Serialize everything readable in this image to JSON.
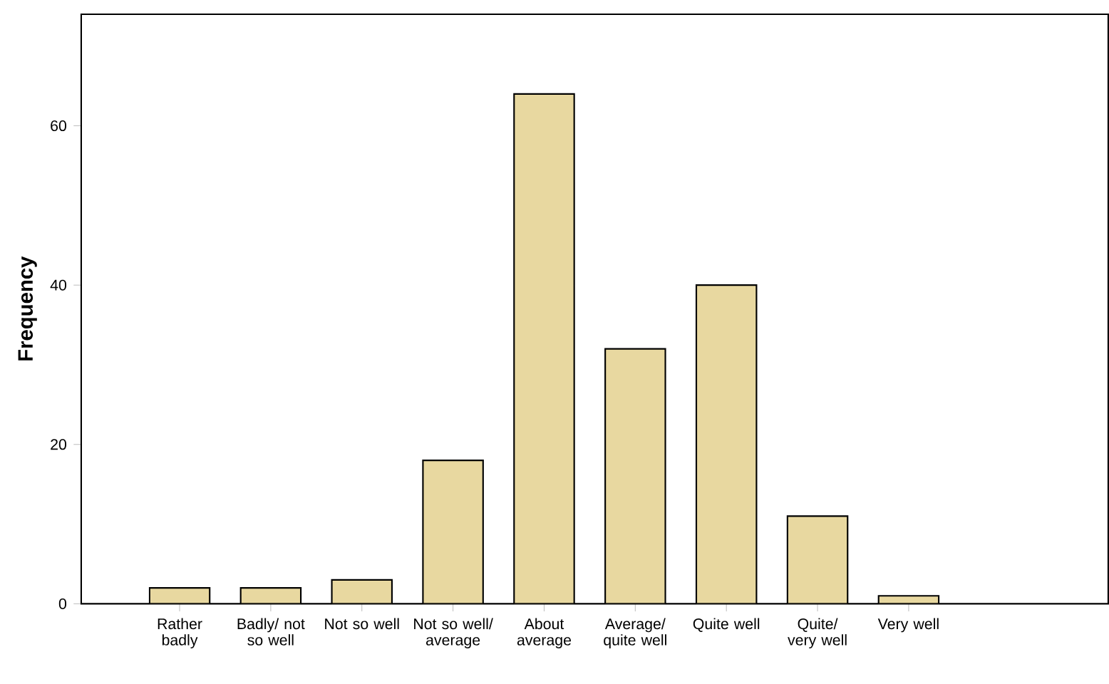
{
  "chart_data": {
    "type": "bar",
    "ylabel": "Frequency",
    "categories": [
      "Rather badly",
      "Badly/ not so well",
      "Not so well",
      "Not so well/ average",
      "About average",
      "Average/ quite well",
      "Quite well",
      "Quite/ very well",
      "Very well"
    ],
    "values": [
      2,
      2,
      3,
      18,
      64,
      32,
      40,
      11,
      1
    ],
    "color": "#e8d8a0",
    "ylim": [
      0,
      74
    ],
    "yticks": [
      0,
      20,
      40,
      60
    ]
  }
}
